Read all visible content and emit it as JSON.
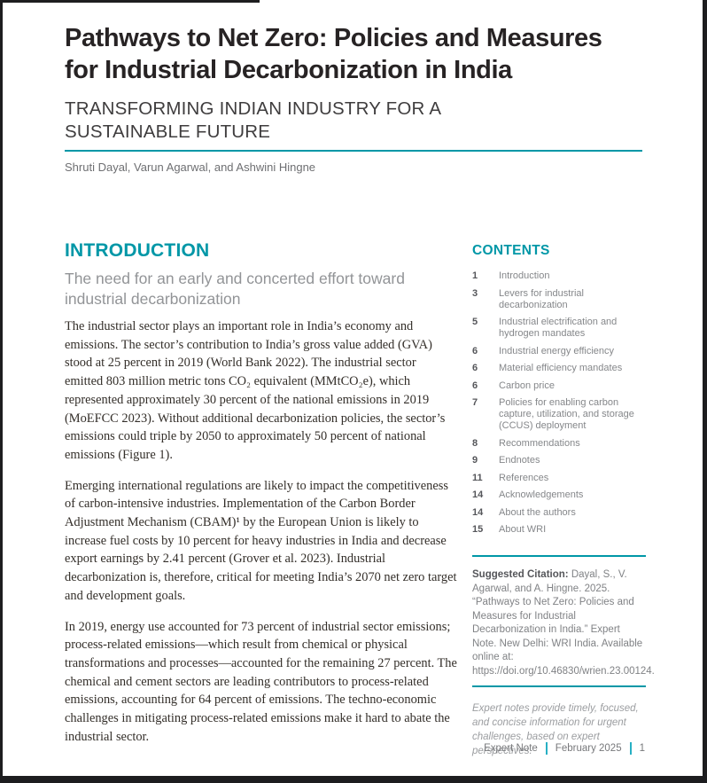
{
  "header": {
    "title": "Pathways to Net Zero: Policies and Measures for Industrial Decarbonization in India",
    "subtitle": "TRANSFORMING INDIAN INDUSTRY FOR A SUSTAINABLE FUTURE",
    "authors": "Shruti Dayal, Varun Agarwal, and Ashwini Hingne"
  },
  "introduction": {
    "heading": "INTRODUCTION",
    "subheading": "The need for an early and concerted effort toward industrial decarbonization",
    "paragraphs": [
      "The industrial sector plays an important role in India’s economy and emissions. The sector’s contribution to India’s gross value added (GVA) stood at 25 percent in 2019 (World Bank 2022). The industrial sector emitted 803 million metric tons CO₂ equivalent (MMtCO₂e), which represented approximately 30 percent of the national emissions in 2019 (MoEFCC 2023). Without additional decarbonization policies, the sector’s emissions could triple by 2050 to approximately 50 percent of national emissions (Figure 1).",
      "Emerging international regulations are likely to impact the competitiveness of carbon-intensive industries. Implementation of the Carbon Border Adjustment Mechanism (CBAM)¹ by the European Union is likely to increase fuel costs by 10 percent for heavy industries in India and decrease export earnings by 2.41 percent (Grover et al. 2023). Industrial decarbonization is, therefore, critical for meeting India’s 2070 net zero target and development goals.",
      "In 2019, energy use accounted for 73 percent of industrial sector emissions; process-related emissions—which result from chemical or physical transformations and processes—accounted for the remaining 27 percent. The chemical and cement sectors are leading contributors to process-related emissions, accounting for 64 percent of emissions. The techno-economic challenges in mitigating process-related emissions make it hard to abate the industrial sector."
    ]
  },
  "contents": {
    "heading": "CONTENTS",
    "items": [
      {
        "page": "1",
        "label": "Introduction"
      },
      {
        "page": "3",
        "label": "Levers for industrial decarbonization"
      },
      {
        "page": "5",
        "label": "Industrial electrification and hydrogen mandates"
      },
      {
        "page": "6",
        "label": "Industrial energy efficiency"
      },
      {
        "page": "6",
        "label": "Material efficiency mandates"
      },
      {
        "page": "6",
        "label": "Carbon price"
      },
      {
        "page": "7",
        "label": "Policies for enabling carbon capture, utilization, and storage (CCUS) deployment"
      },
      {
        "page": "8",
        "label": "Recommendations"
      },
      {
        "page": "9",
        "label": "Endnotes"
      },
      {
        "page": "11",
        "label": "References"
      },
      {
        "page": "14",
        "label": "Acknowledgements"
      },
      {
        "page": "14",
        "label": "About the authors"
      },
      {
        "page": "15",
        "label": "About WRI"
      }
    ]
  },
  "citation": {
    "label": "Suggested Citation:",
    "text": " Dayal, S., V. Agarwal, and A. Hingne. 2025. “Pathways to Net Zero: Policies and Measures for Industrial Decarbonization in India.” Expert Note. New Delhi: WRI India. Available online at: https://doi.org/10.46830/wrien.23.00124."
  },
  "expert_note_description": "Expert notes provide timely, focused, and concise information for urgent challenges, based on expert perspectives.",
  "footer": {
    "doc_type": "Expert Note",
    "date": "February 2025",
    "page_number": "1"
  },
  "colors": {
    "accent_teal": "#0097A7",
    "title_text": "#272324",
    "body_text": "#332e29",
    "muted_gray": "#85878a",
    "frame_black": "#1d1d1f"
  }
}
